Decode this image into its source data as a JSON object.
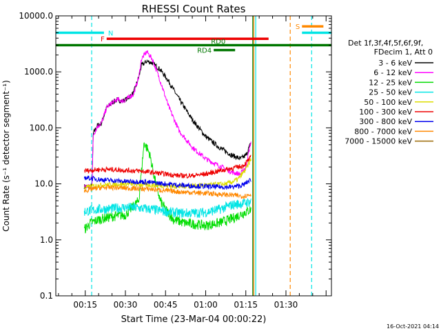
{
  "chart_data": {
    "type": "line",
    "title": "RHESSI Count Rates",
    "xlabel": "Start Time (23-Mar-04 00:00:22)",
    "ylabel": "Count Rate (s⁻¹ detector segment⁻¹)",
    "yscale": "log",
    "ylim": [
      0.1,
      10000
    ],
    "xlim": [
      4,
      107
    ],
    "x_unit": "minutes after 23-Mar-04 00:00:22",
    "xticks": [
      15,
      30,
      45,
      60,
      75,
      90
    ],
    "xtick_labels": [
      "00:15",
      "00:30",
      "00:45",
      "01:00",
      "01:15",
      "01:30"
    ],
    "yticks": [
      0.1,
      1,
      10,
      100,
      1000,
      10000
    ],
    "ytick_labels": [
      "0.1",
      "1.0",
      "10.0",
      "100.0",
      "1000.0",
      "10000.0"
    ],
    "footer": "16-Oct-2021 04:14",
    "legend_header": [
      "Det 1f,3f,4f,5f,6f,9f,",
      "FDecim 1, Att 0"
    ],
    "legend_position": "right",
    "series": [
      {
        "name": "3 - 6 keV",
        "color": "#000000",
        "x": [
          14.5,
          17.5,
          18.0,
          19.5,
          21,
          23,
          25,
          27,
          29,
          31,
          33,
          35,
          36,
          38,
          40,
          43,
          46,
          50,
          55,
          60,
          65,
          70,
          73,
          75,
          77
        ],
        "y": [
          9,
          9,
          80,
          110,
          120,
          230,
          280,
          320,
          300,
          340,
          420,
          800,
          1300,
          1550,
          1450,
          1100,
          700,
          330,
          140,
          70,
          45,
          32,
          28,
          32,
          55
        ]
      },
      {
        "name": "6 - 12 keV",
        "color": "#ff00ff",
        "x": [
          14.5,
          17.5,
          18.0,
          19.5,
          21,
          23,
          25,
          27,
          29,
          31,
          33,
          35,
          36,
          38,
          40,
          43,
          46,
          50,
          55,
          60,
          65,
          70,
          73,
          75,
          77
        ],
        "y": [
          9,
          9,
          75,
          105,
          120,
          230,
          280,
          320,
          300,
          340,
          400,
          800,
          1700,
          2300,
          1700,
          700,
          250,
          90,
          45,
          28,
          21,
          16,
          15,
          20,
          60
        ]
      },
      {
        "name": "12 - 25 keV",
        "color": "#00dd00",
        "x": [
          14.5,
          17,
          20,
          25,
          30,
          35,
          37,
          39,
          41,
          43,
          45,
          48,
          52,
          56,
          60,
          65,
          70,
          74,
          77
        ],
        "y": [
          1.5,
          2.0,
          2.3,
          2.6,
          2.8,
          5,
          55,
          35,
          12,
          5,
          3.5,
          2.3,
          2.0,
          1.9,
          1.8,
          2.0,
          2.4,
          3.0,
          3.5
        ]
      },
      {
        "name": "25 - 50 keV",
        "color": "#00e5e5",
        "x": [
          14.5,
          20,
          25,
          30,
          35,
          40,
          45,
          50,
          55,
          60,
          65,
          70,
          74,
          77
        ],
        "y": [
          3.2,
          3.5,
          3.6,
          3.8,
          3.7,
          3.5,
          3.2,
          3.0,
          3.0,
          3.1,
          3.5,
          4.2,
          4.5,
          4.8
        ]
      },
      {
        "name": "50 - 100 keV",
        "color": "#dddd00",
        "x": [
          14.5,
          20,
          30,
          40,
          50,
          60,
          68,
          72,
          75,
          77
        ],
        "y": [
          8.5,
          9.5,
          10,
          9.5,
          9.0,
          9.5,
          10,
          12,
          18,
          28
        ]
      },
      {
        "name": "100 - 300 keV",
        "color": "#ee0000",
        "x": [
          14.5,
          20,
          25,
          30,
          35,
          40,
          45,
          50,
          55,
          60,
          65,
          70,
          74,
          77
        ],
        "y": [
          17,
          18,
          18,
          17.5,
          17,
          16,
          15,
          14,
          14,
          15,
          17,
          19,
          21,
          30
        ]
      },
      {
        "name": "300 - 800 keV",
        "color": "#0000ee",
        "x": [
          14.5,
          20,
          25,
          30,
          35,
          40,
          45,
          50,
          55,
          60,
          65,
          70,
          74,
          77
        ],
        "y": [
          13,
          12,
          11.5,
          11,
          11,
          10.5,
          10,
          9.5,
          9.2,
          9.0,
          8.8,
          8.8,
          9.5,
          12
        ]
      },
      {
        "name": "800 - 7000 keV",
        "color": "#ff8800",
        "x": [
          14.5,
          20,
          25,
          30,
          35,
          40,
          45,
          50,
          55,
          60,
          65,
          70,
          74,
          77
        ],
        "y": [
          7.5,
          8.5,
          8.6,
          8.4,
          8.2,
          8.0,
          7.6,
          7.2,
          7.0,
          6.8,
          6.5,
          6.3,
          6.0,
          6.5
        ]
      },
      {
        "name": "7000 - 15000 keV",
        "color": "#996600",
        "x": [],
        "y": []
      }
    ],
    "annotations": [
      {
        "label": "N",
        "color": "#00e5e5",
        "x": [
          4,
          22
        ],
        "y": 5000
      },
      {
        "label": "",
        "color": "#00e5e5",
        "x": [
          96,
          107
        ],
        "y": 5000
      },
      {
        "label": "F",
        "color": "#ee0000",
        "x": [
          23,
          83.5
        ],
        "y": 3900
      },
      {
        "label": "S",
        "color": "#ff8800",
        "x": [
          96,
          104
        ],
        "y": 6500
      },
      {
        "label": "RD0",
        "color": "#007700",
        "x": [
          4,
          107
        ],
        "y": 3000
      },
      {
        "label": "RD4",
        "color": "#007700",
        "x": [
          63,
          71
        ],
        "y": 2450
      }
    ],
    "vlines": [
      {
        "x": 17.4,
        "color": "#00e5e5",
        "style": "dashed"
      },
      {
        "x": 78.7,
        "color": "#00e5e5",
        "style": "solid"
      },
      {
        "x": 78.0,
        "color": "#ff8800",
        "style": "solid"
      },
      {
        "x": 77.6,
        "color": "#007700",
        "style": "solid"
      },
      {
        "x": 91.6,
        "color": "#ff8800",
        "style": "dashed"
      },
      {
        "x": 99.6,
        "color": "#00e5e5",
        "style": "dashed"
      }
    ]
  }
}
